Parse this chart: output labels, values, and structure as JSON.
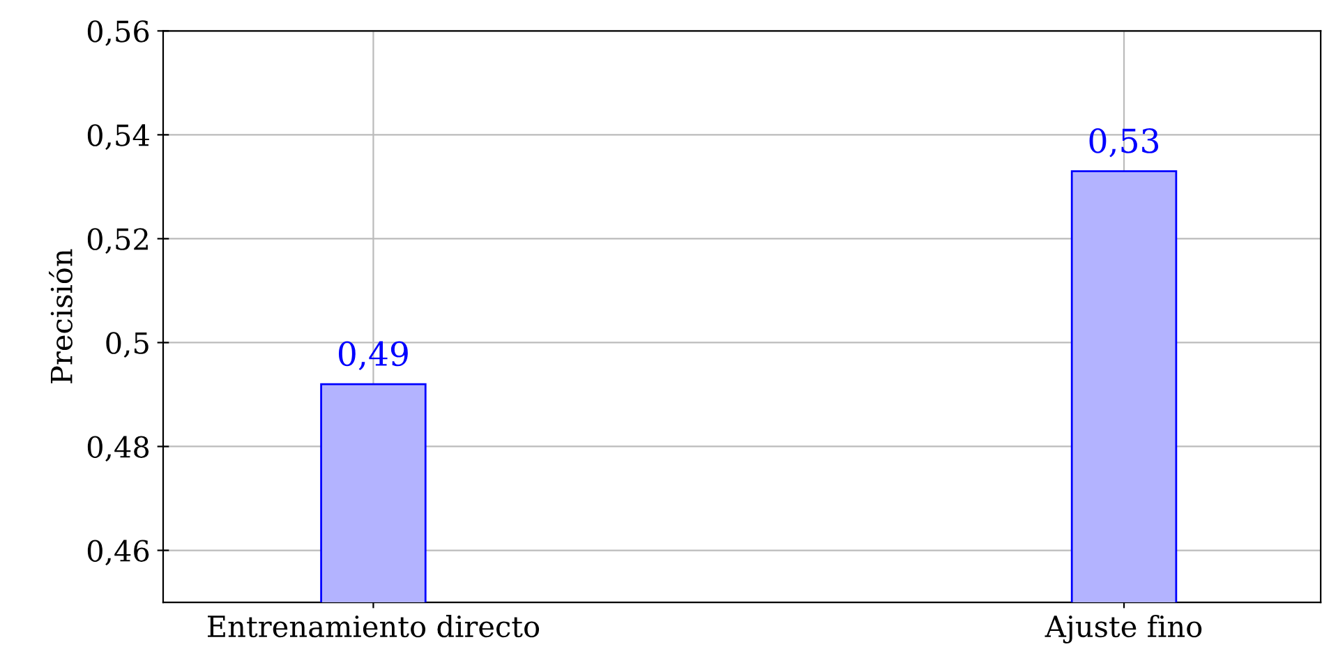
{
  "chart_data": {
    "type": "bar",
    "ylabel": "Precisión",
    "categories": [
      "Entrenamiento directo",
      "Ajuste fino"
    ],
    "values": [
      0.492,
      0.533
    ],
    "value_labels": [
      "0,49",
      "0,53"
    ],
    "color": "#b3b3ff",
    "ylim": [
      0.45,
      0.56
    ],
    "yticks": [
      {
        "value": 0.46,
        "label": "0,46"
      },
      {
        "value": 0.48,
        "label": "0,48"
      },
      {
        "value": 0.5,
        "label": "0,5"
      },
      {
        "value": 0.52,
        "label": "0,52"
      },
      {
        "value": 0.54,
        "label": "0,54"
      },
      {
        "value": 0.56,
        "label": "0,56"
      }
    ],
    "grid": true,
    "legend": false
  }
}
